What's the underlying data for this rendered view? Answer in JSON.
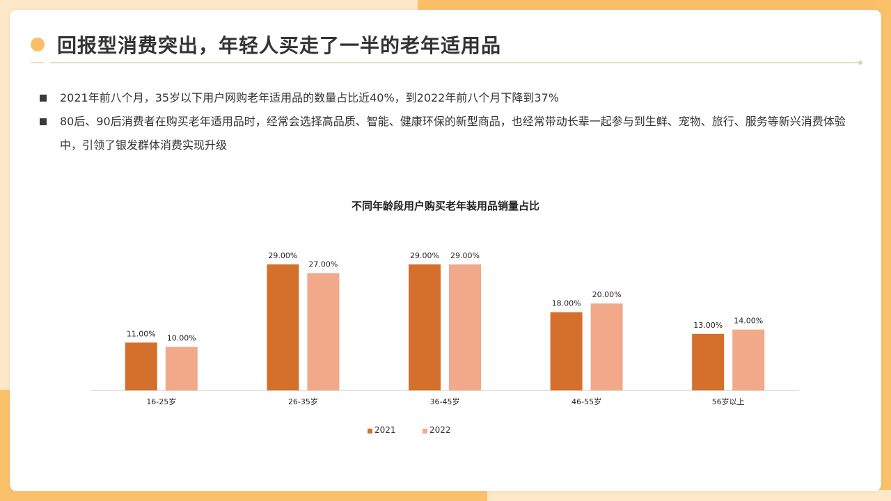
{
  "title": "回报型消费突出，年轻人买走了一半的老年适用品",
  "bullets": [
    "2021年前八个月，35岁以下用户网购老年适用品的数量占比近40%，到2022年前八个月下降到37%",
    "80后、90后消费者在购买老年适用品时，经常会选择高品质、智能、健康环保的新型商品，也经常带动长辈一起参与到生鲜、宠物、旅行、服务等新兴消费体验中，引领了银发群体消费实现升级"
  ],
  "colors": {
    "accent": "#fbbf68",
    "series_2021": "#d4702c",
    "series_2022": "#f2a98a"
  },
  "chart_data": {
    "type": "bar",
    "title": "不同年龄段用户购买老年装用品销量占比",
    "categories": [
      "16-25岁",
      "26-35岁",
      "36-45岁",
      "46-55岁",
      "56岁以上"
    ],
    "series": [
      {
        "name": "2021",
        "values": [
          11,
          29,
          29,
          18,
          13
        ],
        "labels": [
          "11.00%",
          "29.00%",
          "29.00%",
          "18.00%",
          "13.00%"
        ],
        "color": "#d4702c"
      },
      {
        "name": "2022",
        "values": [
          10,
          27,
          29,
          20,
          14
        ],
        "labels": [
          "10.00%",
          "27.00%",
          "29.00%",
          "20.00%",
          "14.00%"
        ],
        "color": "#f2a98a"
      }
    ],
    "ylim": [
      0,
      30
    ],
    "xlabel": "",
    "ylabel": "",
    "grid": false,
    "legend": "bottom"
  }
}
